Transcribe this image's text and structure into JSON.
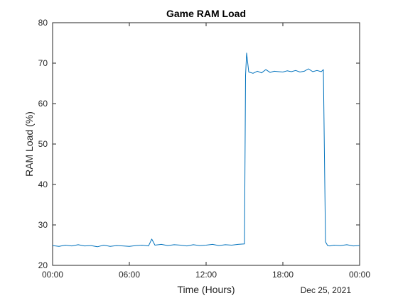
{
  "chart_data": {
    "type": "line",
    "title": "Game RAM Load",
    "xlabel": "Time (Hours)",
    "ylabel": "RAM Load (%)",
    "date_label": "Dec 25, 2021",
    "xlim": [
      "00:00",
      "24:00"
    ],
    "ylim": [
      20,
      80
    ],
    "x_ticks": [
      {
        "value": "00:00",
        "label": "00:00"
      },
      {
        "value": "06:00",
        "label": "06:00"
      },
      {
        "value": "12:00",
        "label": "12:00"
      },
      {
        "value": "18:00",
        "label": "18:00"
      },
      {
        "value": "24:00",
        "label": "00:00"
      }
    ],
    "y_ticks": [
      20,
      30,
      40,
      50,
      60,
      70,
      80
    ],
    "grid": false,
    "colors": {
      "line": "#0072BD",
      "axis": "#262626"
    },
    "series": [
      {
        "x": [
          "00:00",
          "00:30",
          "01:00",
          "01:30",
          "02:00",
          "02:30",
          "03:00",
          "03:30",
          "04:00",
          "04:30",
          "05:00",
          "05:30",
          "06:00",
          "06:30",
          "07:00",
          "07:30",
          "07:45",
          "08:00",
          "08:30",
          "09:00",
          "09:30",
          "10:00",
          "10:30",
          "11:00",
          "11:30",
          "12:00",
          "12:30",
          "13:00",
          "13:30",
          "14:00",
          "14:30",
          "15:00",
          "15:05",
          "15:10",
          "15:20",
          "15:40",
          "16:00",
          "16:20",
          "16:40",
          "17:00",
          "17:20",
          "17:40",
          "18:00",
          "18:20",
          "18:40",
          "19:00",
          "19:20",
          "19:40",
          "20:00",
          "20:20",
          "20:40",
          "21:00",
          "21:10",
          "21:20",
          "21:30",
          "21:40",
          "22:00",
          "22:30",
          "23:00",
          "23:30",
          "24:00"
        ],
        "values": [
          24.9,
          24.7,
          25.0,
          24.8,
          25.1,
          24.8,
          24.9,
          24.6,
          25.0,
          24.7,
          24.9,
          24.8,
          24.7,
          24.9,
          25.0,
          24.8,
          26.5,
          25.0,
          25.2,
          24.9,
          25.1,
          25.0,
          24.8,
          25.1,
          24.9,
          25.0,
          25.2,
          24.9,
          25.1,
          25.0,
          25.2,
          25.3,
          67.0,
          72.5,
          67.8,
          67.5,
          68.0,
          67.6,
          68.4,
          67.7,
          68.0,
          67.9,
          67.8,
          68.1,
          67.9,
          68.2,
          67.8,
          68.0,
          68.6,
          67.9,
          68.2,
          67.9,
          68.4,
          25.8,
          24.9,
          24.8,
          25.0,
          24.9,
          25.1,
          24.8,
          24.9
        ]
      }
    ]
  }
}
